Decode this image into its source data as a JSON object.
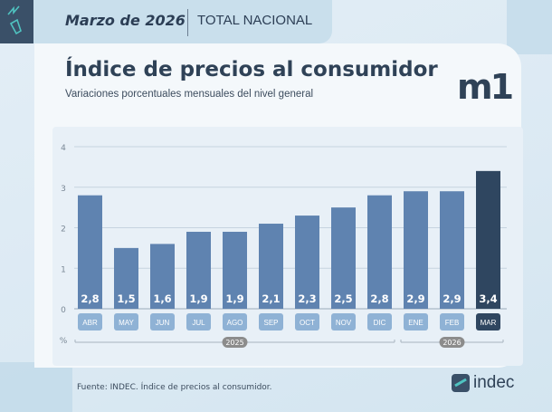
{
  "header": {
    "date": "Marzo de 2026",
    "region": "TOTAL NACIONAL"
  },
  "logo_text": "m1",
  "footer": {
    "source": "Fuente: INDEC. Índice de precios al consumidor.",
    "brand": "indec"
  },
  "colors": {
    "bar": "#5f83b0",
    "bar_highlight": "#2f4660",
    "label_bg": "#8fb2d5",
    "year_badge": "#8c8c8c"
  },
  "chart_data": {
    "type": "bar",
    "title": "Índice de precios al consumidor",
    "subtitle": "Variaciones porcentuales mensuales del nivel general",
    "ylabel": "%",
    "ylim": [
      0,
      4
    ],
    "yticks": [
      "0",
      "1",
      "2",
      "3",
      "4"
    ],
    "grid": true,
    "categories": [
      "ABR",
      "MAY",
      "JUN",
      "JUL",
      "AGO",
      "SEP",
      "OCT",
      "NOV",
      "DIC",
      "ENE",
      "FEB",
      "MAR"
    ],
    "values": [
      2.8,
      1.5,
      1.6,
      1.9,
      1.9,
      2.1,
      2.3,
      2.5,
      2.8,
      2.9,
      2.9,
      3.4
    ],
    "data_labels": [
      "2,8",
      "1,5",
      "1,6",
      "1,9",
      "1,9",
      "2,1",
      "2,3",
      "2,5",
      "2,8",
      "2,9",
      "2,9",
      "3,4"
    ],
    "highlight": "MAR",
    "year_groups": [
      {
        "label": "2025",
        "from": "ABR",
        "to": "DIC"
      },
      {
        "label": "2026",
        "from": "ENE",
        "to": "MAR"
      }
    ]
  }
}
